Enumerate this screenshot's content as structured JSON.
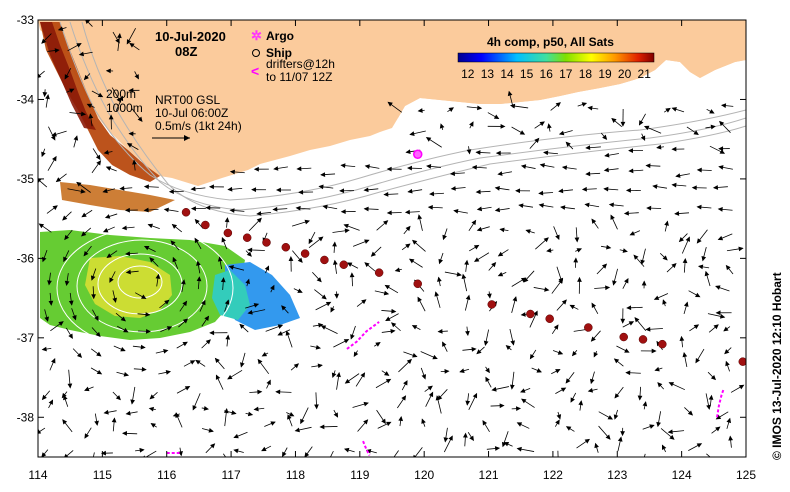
{
  "title": {
    "date": "10-Jul-2020",
    "time": "08Z"
  },
  "legend": {
    "argo": "Argo",
    "ship": "Ship",
    "drifters_line1": "drifters@12h",
    "drifters_line2": "to 11/07 12Z",
    "argo_color": "#ff33ff",
    "drifter_color": "#ff00ff"
  },
  "info": {
    "contour_200": "200m",
    "contour_1000": "1000m",
    "product": "NRT00 GSL",
    "timestamp": "10-Jul 06:00Z",
    "scale": "0.5m/s (1kt 24h)"
  },
  "colorbar": {
    "title": "4h comp, p50, All Sats",
    "ticks": [
      "12",
      "13",
      "14",
      "15",
      "16",
      "17",
      "18",
      "19",
      "20",
      "21"
    ],
    "range": [
      11.5,
      21.5
    ]
  },
  "axes": {
    "x_ticks": [
      "114",
      "115",
      "116",
      "117",
      "118",
      "119",
      "120",
      "121",
      "122",
      "123",
      "124",
      "125"
    ],
    "y_ticks": [
      "-33",
      "-34",
      "-35",
      "-36",
      "-37",
      "-38"
    ],
    "lon_range": [
      114,
      125
    ],
    "lat_range": [
      -38.5,
      -33
    ]
  },
  "credit": "© IMOS 13-Jul-2020 12:10 Hobart",
  "colors": {
    "land": "#fbcb9c",
    "ship": "#a01010",
    "contour": "#b4b4b4",
    "arrow": "#000000"
  },
  "ship_track": [
    [
      116.3,
      -35.42
    ],
    [
      116.6,
      -35.58
    ],
    [
      116.95,
      -35.68
    ],
    [
      117.25,
      -35.74
    ],
    [
      117.55,
      -35.8
    ],
    [
      117.85,
      -35.86
    ],
    [
      118.15,
      -35.94
    ],
    [
      118.45,
      -36.02
    ],
    [
      118.75,
      -36.08
    ],
    [
      119.3,
      -36.18
    ],
    [
      119.9,
      -36.32
    ],
    [
      121.05,
      -36.58
    ],
    [
      121.65,
      -36.7
    ],
    [
      121.95,
      -36.76
    ],
    [
      122.55,
      -36.87
    ],
    [
      123.1,
      -36.99
    ],
    [
      123.4,
      -37.02
    ],
    [
      123.7,
      -37.08
    ],
    [
      124.95,
      -37.3
    ]
  ],
  "argo_floats": [
    [
      119.9,
      -34.69
    ]
  ],
  "drifters": [
    {
      "points": [
        [
          118.8,
          -37.14
        ],
        [
          118.95,
          -37.05
        ],
        [
          119.1,
          -36.92
        ],
        [
          119.3,
          -36.8
        ]
      ]
    },
    {
      "points": [
        [
          124.55,
          -38.0
        ],
        [
          124.58,
          -37.85
        ],
        [
          124.62,
          -37.72
        ],
        [
          124.65,
          -37.65
        ]
      ]
    },
    {
      "points": [
        [
          116.0,
          -38.45
        ],
        [
          116.15,
          -38.45
        ],
        [
          116.2,
          -38.45
        ]
      ]
    },
    {
      "points": [
        [
          119.05,
          -38.3
        ],
        [
          119.1,
          -38.4
        ],
        [
          119.15,
          -38.48
        ]
      ]
    }
  ]
}
